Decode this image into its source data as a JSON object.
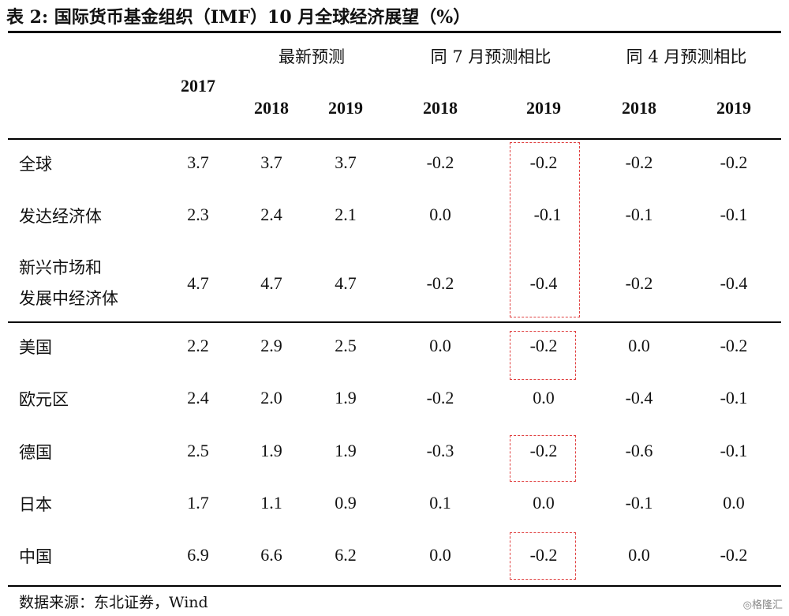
{
  "title": "表 2: 国际货币基金组织（IMF）10 月全球经济展望（%）",
  "header": {
    "group_latest": "最新预测",
    "group_vs_july": "同 7 月预测相比",
    "group_vs_april": "同 4 月预测相比",
    "col_2017": "2017",
    "col_2018": "2018",
    "col_2019": "2019"
  },
  "rows": [
    {
      "label": "全球",
      "values": [
        "3.7",
        "3.7",
        "3.7",
        "-0.2",
        "-0.2",
        "-0.2",
        "-0.2"
      ]
    },
    {
      "label": "发达经济体",
      "values": [
        "2.3",
        "2.4",
        "2.1",
        "0.0",
        "-0.1",
        "-0.1",
        "-0.1"
      ]
    },
    {
      "label": "新兴市场和",
      "label2": "发展中经济体",
      "values": [
        "4.7",
        "4.7",
        "4.7",
        "-0.2",
        "-0.4",
        "-0.2",
        "-0.4"
      ]
    },
    {
      "label": "美国",
      "values": [
        "2.2",
        "2.9",
        "2.5",
        "0.0",
        "-0.2",
        "0.0",
        "-0.2"
      ]
    },
    {
      "label": "欧元区",
      "values": [
        "2.4",
        "2.0",
        "1.9",
        "-0.2",
        "0.0",
        "-0.4",
        "-0.1"
      ]
    },
    {
      "label": "德国",
      "values": [
        "2.5",
        "1.9",
        "1.9",
        "-0.3",
        "-0.2",
        "-0.6",
        "-0.1"
      ]
    },
    {
      "label": "日本",
      "values": [
        "1.7",
        "1.1",
        "0.9",
        "0.1",
        "0.0",
        "-0.1",
        "0.0"
      ]
    },
    {
      "label": "中国",
      "values": [
        "6.9",
        "6.6",
        "6.2",
        "0.0",
        "-0.2",
        "0.0",
        "-0.2"
      ]
    }
  ],
  "source": "数据来源：东北证券，Wind",
  "watermark": "◎格隆汇"
}
